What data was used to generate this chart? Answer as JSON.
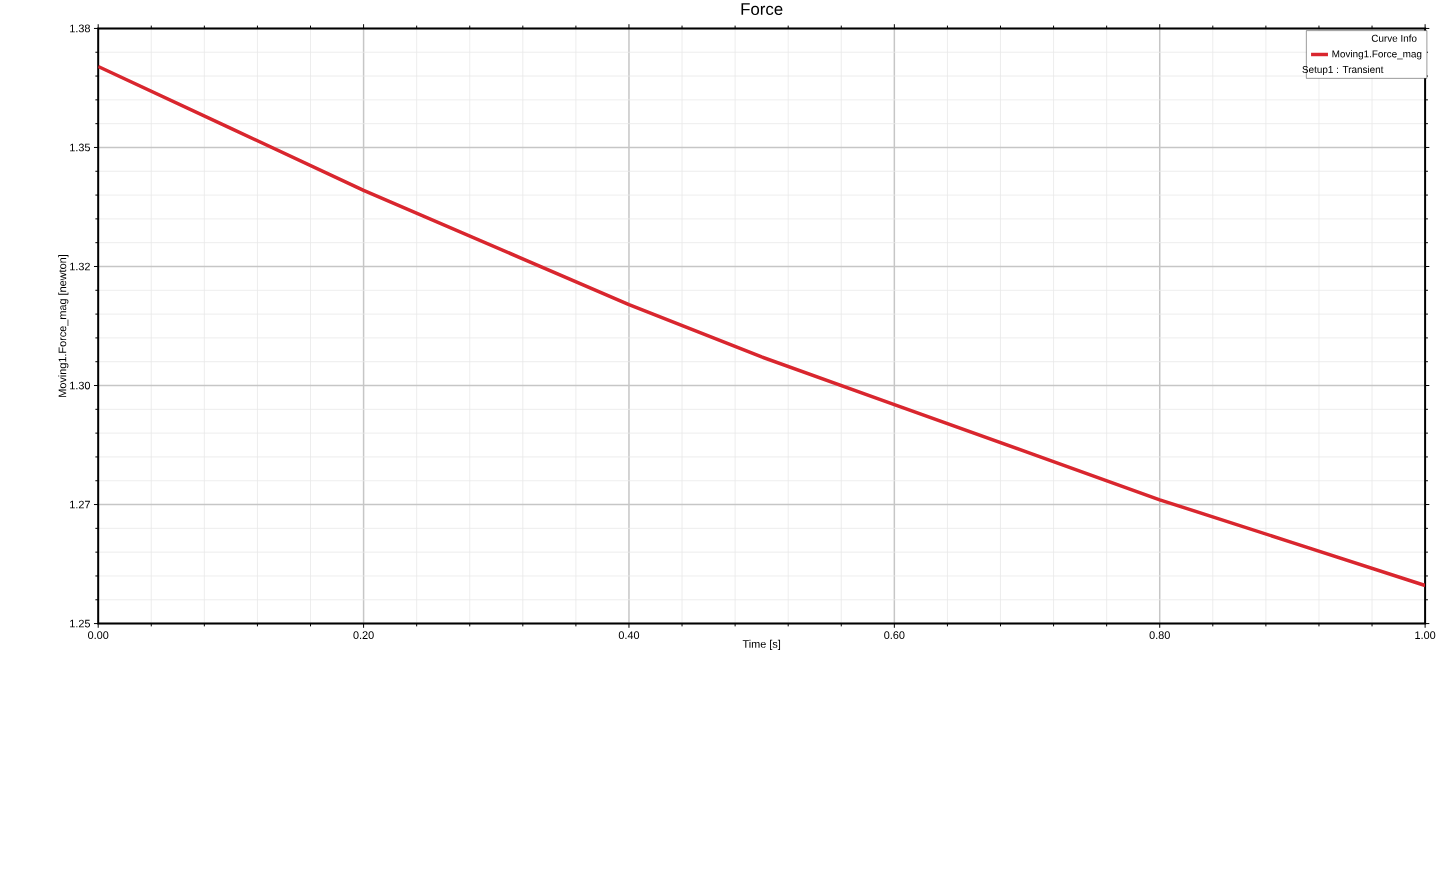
{
  "chart_data": {
    "type": "line",
    "title": "Force",
    "xlabel": "Time [s]",
    "ylabel": "Moving1.Force_mag [newton]",
    "legend_title": "Curve Info",
    "x": [
      0,
      0.1,
      0.2,
      0.3,
      0.4,
      0.5,
      0.6,
      0.7,
      0.8,
      0.9,
      1.0
    ],
    "series": [
      {
        "name": "Moving1.Force_mag",
        "color": "#d9262e",
        "values": [
          1.367,
          1.354,
          1.341,
          1.329,
          1.317,
          1.306,
          1.296,
          1.286,
          1.276,
          1.267,
          1.258
        ]
      }
    ],
    "xlim": [
      0,
      1
    ],
    "ylim": [
      1.25,
      1.375
    ],
    "xticks": [
      {
        "value": 0,
        "label": "0.00"
      },
      {
        "value": 0.2,
        "label": "0.20"
      },
      {
        "value": 0.4,
        "label": "0.40"
      },
      {
        "value": 0.6,
        "label": "0.60"
      },
      {
        "value": 0.8,
        "label": "0.80"
      },
      {
        "value": 1,
        "label": "1.00"
      }
    ],
    "yticks": [
      {
        "value": 1.25,
        "label": "1.25"
      },
      {
        "value": 1.275,
        "label": "1.27"
      },
      {
        "value": 1.3,
        "label": "1.30"
      },
      {
        "value": 1.325,
        "label": "1.32"
      },
      {
        "value": 1.35,
        "label": "1.35"
      },
      {
        "value": 1.375,
        "label": "1.38"
      }
    ],
    "annotations": [
      "Setup1 : Transient"
    ],
    "grid": true,
    "legend": "top right",
    "marker": "none",
    "line_style": "solid"
  }
}
